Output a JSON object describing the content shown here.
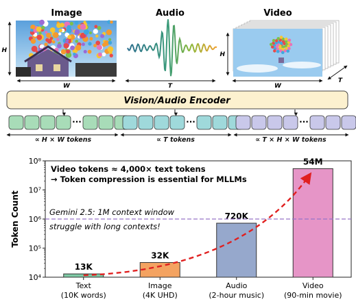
{
  "header": {
    "image_label": "Image",
    "audio_label": "Audio",
    "video_label": "Video",
    "image_h": "H",
    "image_w": "W",
    "audio_t": "T",
    "video_h": "H",
    "video_w": "W",
    "video_t": "T"
  },
  "encoder": {
    "label": "Vision/Audio Encoder",
    "color": "#fcf1cf",
    "ellipsis": "···"
  },
  "token_groups": [
    {
      "label": "∝ H × W tokens",
      "color": "#a8dcb8"
    },
    {
      "label": "∝ T tokens",
      "color": "#9fd9db"
    },
    {
      "label": "∝ T × H × W tokens",
      "color": "#c9c8ea"
    }
  ],
  "chart_data": {
    "type": "bar",
    "ylabel": "Token Count",
    "yscale": "log",
    "ylim": [
      10000,
      100000000
    ],
    "yticks": [
      {
        "value": 10000,
        "label": "10⁴"
      },
      {
        "value": 100000,
        "label": "10⁵"
      },
      {
        "value": 1000000,
        "label": "10⁶"
      },
      {
        "value": 10000000,
        "label": "10⁷"
      },
      {
        "value": 100000000,
        "label": "10⁸"
      }
    ],
    "categories": [
      {
        "name": "Text",
        "sub": "(10K words)"
      },
      {
        "name": "Image",
        "sub": "(4K UHD)"
      },
      {
        "name": "Audio",
        "sub": "(2-hour music)"
      },
      {
        "name": "Video",
        "sub": "(90-min movie)"
      }
    ],
    "values": [
      13000,
      32000,
      720000,
      54000000
    ],
    "value_labels": [
      "13K",
      "32K",
      "720K",
      "54M"
    ],
    "bar_colors": [
      "#7fcaa5",
      "#f4a361",
      "#96a8cc",
      "#e695c7"
    ],
    "reference_line": {
      "value": 1000000,
      "color": "#9673c8",
      "text_1": "Gemini 2.5: 1M context window",
      "text_2": "struggle with long contexts!"
    },
    "annotation_1": "Video tokens ≈ 4,000× text tokens",
    "annotation_2": "→ Token compression is essential for MLLMs",
    "arrow_color": "#e02020"
  }
}
